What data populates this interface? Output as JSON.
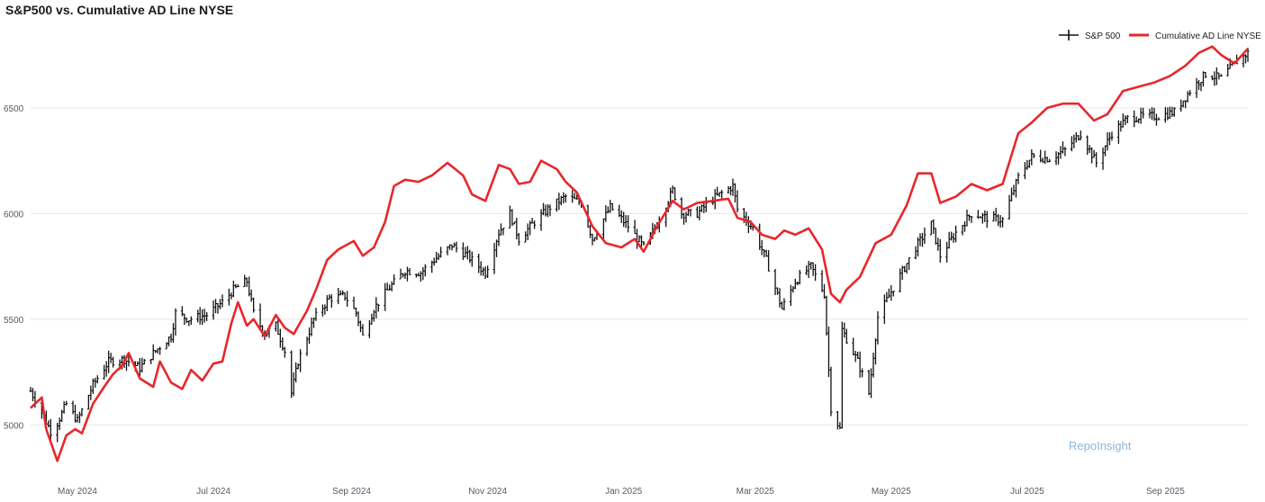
{
  "chart_data": {
    "type": "line",
    "title": "S&P500 vs. Cumulative AD Line NYSE",
    "xlabel": "",
    "ylabel": "",
    "xlim": [
      "2024-04-10",
      "2025-10-08"
    ],
    "ylim": [
      4780,
      6840
    ],
    "y_ticks": [
      5000,
      5500,
      6000,
      6500
    ],
    "x_ticks": [
      {
        "date": "2024-05-01",
        "label": "May 2024"
      },
      {
        "date": "2024-07-01",
        "label": "Jul 2024"
      },
      {
        "date": "2024-09-01",
        "label": "Sep 2024"
      },
      {
        "date": "2024-11-01",
        "label": "Nov 2024"
      },
      {
        "date": "2025-01-01",
        "label": "Jan 2025"
      },
      {
        "date": "2025-03-01",
        "label": "Mar 2025"
      },
      {
        "date": "2025-05-01",
        "label": "May 2025"
      },
      {
        "date": "2025-07-01",
        "label": "Jul 2025"
      },
      {
        "date": "2025-09-01",
        "label": "Sep 2025"
      }
    ],
    "grid": true,
    "legend_position": "top-right",
    "watermark": "RepoInsight",
    "series": [
      {
        "name": "S&P 500",
        "style": "ohlc",
        "color": "#111111",
        "points": [
          [
            "2024-04-10",
            5160
          ],
          [
            "2024-04-15",
            5060
          ],
          [
            "2024-04-19",
            4970
          ],
          [
            "2024-04-22",
            5010
          ],
          [
            "2024-04-26",
            5100
          ],
          [
            "2024-05-01",
            5020
          ],
          [
            "2024-05-08",
            5190
          ],
          [
            "2024-05-15",
            5300
          ],
          [
            "2024-05-22",
            5310
          ],
          [
            "2024-05-29",
            5270
          ],
          [
            "2024-06-05",
            5350
          ],
          [
            "2024-06-12",
            5420
          ],
          [
            "2024-06-14",
            5530
          ],
          [
            "2024-06-20",
            5500
          ],
          [
            "2024-06-28",
            5520
          ],
          [
            "2024-07-05",
            5580
          ],
          [
            "2024-07-10",
            5640
          ],
          [
            "2024-07-16",
            5680
          ],
          [
            "2024-07-19",
            5530
          ],
          [
            "2024-07-24",
            5430
          ],
          [
            "2024-07-29",
            5470
          ],
          [
            "2024-08-02",
            5350
          ],
          [
            "2024-08-05",
            5150
          ],
          [
            "2024-08-08",
            5300
          ],
          [
            "2024-08-15",
            5500
          ],
          [
            "2024-08-22",
            5600
          ],
          [
            "2024-08-29",
            5610
          ],
          [
            "2024-09-03",
            5530
          ],
          [
            "2024-09-06",
            5420
          ],
          [
            "2024-09-11",
            5550
          ],
          [
            "2024-09-18",
            5650
          ],
          [
            "2024-09-25",
            5730
          ],
          [
            "2024-10-02",
            5720
          ],
          [
            "2024-10-09",
            5790
          ],
          [
            "2024-10-16",
            5850
          ],
          [
            "2024-10-23",
            5800
          ],
          [
            "2024-10-31",
            5720
          ],
          [
            "2024-11-06",
            5910
          ],
          [
            "2024-11-11",
            6000
          ],
          [
            "2024-11-15",
            5880
          ],
          [
            "2024-11-22",
            5960
          ],
          [
            "2024-11-29",
            6030
          ],
          [
            "2024-12-06",
            6080
          ],
          [
            "2024-12-13",
            6050
          ],
          [
            "2024-12-18",
            5880
          ],
          [
            "2024-12-26",
            6030
          ],
          [
            "2025-01-03",
            5940
          ],
          [
            "2025-01-10",
            5840
          ],
          [
            "2025-01-16",
            5950
          ],
          [
            "2025-01-23",
            6110
          ],
          [
            "2025-01-27",
            6000
          ],
          [
            "2025-02-03",
            6000
          ],
          [
            "2025-02-10",
            6070
          ],
          [
            "2025-02-19",
            6130
          ],
          [
            "2025-02-21",
            6020
          ],
          [
            "2025-02-28",
            5930
          ],
          [
            "2025-03-06",
            5780
          ],
          [
            "2025-03-13",
            5550
          ],
          [
            "2025-03-19",
            5680
          ],
          [
            "2025-03-26",
            5750
          ],
          [
            "2025-04-01",
            5620
          ],
          [
            "2025-04-04",
            5080
          ],
          [
            "2025-04-08",
            4980
          ],
          [
            "2025-04-09",
            5450
          ],
          [
            "2025-04-16",
            5300
          ],
          [
            "2025-04-21",
            5150
          ],
          [
            "2025-04-25",
            5510
          ],
          [
            "2025-05-02",
            5650
          ],
          [
            "2025-05-12",
            5840
          ],
          [
            "2025-05-19",
            5950
          ],
          [
            "2025-05-23",
            5800
          ],
          [
            "2025-05-30",
            5910
          ],
          [
            "2025-06-06",
            6000
          ],
          [
            "2025-06-13",
            5980
          ],
          [
            "2025-06-20",
            5970
          ],
          [
            "2025-06-27",
            6170
          ],
          [
            "2025-07-03",
            6270
          ],
          [
            "2025-07-11",
            6260
          ],
          [
            "2025-07-18",
            6300
          ],
          [
            "2025-07-25",
            6380
          ],
          [
            "2025-08-01",
            6240
          ],
          [
            "2025-08-08",
            6380
          ],
          [
            "2025-08-15",
            6450
          ],
          [
            "2025-08-22",
            6460
          ],
          [
            "2025-08-29",
            6460
          ],
          [
            "2025-09-05",
            6480
          ],
          [
            "2025-09-12",
            6580
          ],
          [
            "2025-09-19",
            6660
          ],
          [
            "2025-09-26",
            6640
          ],
          [
            "2025-10-03",
            6720
          ],
          [
            "2025-10-08",
            6760
          ]
        ]
      },
      {
        "name": "Cumulative AD Line NYSE",
        "style": "line",
        "color": "#e8272b",
        "points": [
          [
            "2024-04-10",
            5080
          ],
          [
            "2024-04-15",
            5130
          ],
          [
            "2024-04-17",
            4980
          ],
          [
            "2024-04-22",
            4830
          ],
          [
            "2024-04-26",
            4950
          ],
          [
            "2024-04-30",
            4980
          ],
          [
            "2024-05-03",
            4960
          ],
          [
            "2024-05-08",
            5100
          ],
          [
            "2024-05-13",
            5180
          ],
          [
            "2024-05-17",
            5240
          ],
          [
            "2024-05-21",
            5280
          ],
          [
            "2024-05-24",
            5340
          ],
          [
            "2024-05-29",
            5220
          ],
          [
            "2024-06-04",
            5180
          ],
          [
            "2024-06-07",
            5300
          ],
          [
            "2024-06-12",
            5200
          ],
          [
            "2024-06-17",
            5170
          ],
          [
            "2024-06-21",
            5260
          ],
          [
            "2024-06-26",
            5210
          ],
          [
            "2024-07-01",
            5290
          ],
          [
            "2024-07-05",
            5300
          ],
          [
            "2024-07-09",
            5480
          ],
          [
            "2024-07-12",
            5580
          ],
          [
            "2024-07-16",
            5470
          ],
          [
            "2024-07-19",
            5500
          ],
          [
            "2024-07-24",
            5420
          ],
          [
            "2024-07-29",
            5520
          ],
          [
            "2024-08-02",
            5460
          ],
          [
            "2024-08-06",
            5430
          ],
          [
            "2024-08-12",
            5540
          ],
          [
            "2024-08-16",
            5640
          ],
          [
            "2024-08-21",
            5780
          ],
          [
            "2024-08-26",
            5830
          ],
          [
            "2024-09-02",
            5870
          ],
          [
            "2024-09-06",
            5800
          ],
          [
            "2024-09-11",
            5840
          ],
          [
            "2024-09-16",
            5960
          ],
          [
            "2024-09-20",
            6130
          ],
          [
            "2024-09-25",
            6160
          ],
          [
            "2024-10-01",
            6150
          ],
          [
            "2024-10-07",
            6180
          ],
          [
            "2024-10-14",
            6240
          ],
          [
            "2024-10-21",
            6180
          ],
          [
            "2024-10-25",
            6090
          ],
          [
            "2024-10-31",
            6060
          ],
          [
            "2024-11-06",
            6230
          ],
          [
            "2024-11-11",
            6210
          ],
          [
            "2024-11-15",
            6140
          ],
          [
            "2024-11-20",
            6150
          ],
          [
            "2024-11-25",
            6250
          ],
          [
            "2024-12-02",
            6210
          ],
          [
            "2024-12-06",
            6150
          ],
          [
            "2024-12-11",
            6100
          ],
          [
            "2024-12-18",
            5940
          ],
          [
            "2024-12-24",
            5860
          ],
          [
            "2024-12-31",
            5840
          ],
          [
            "2025-01-06",
            5880
          ],
          [
            "2025-01-10",
            5820
          ],
          [
            "2025-01-16",
            5940
          ],
          [
            "2025-01-23",
            6060
          ],
          [
            "2025-01-28",
            6020
          ],
          [
            "2025-02-03",
            6050
          ],
          [
            "2025-02-10",
            6060
          ],
          [
            "2025-02-17",
            6070
          ],
          [
            "2025-02-21",
            5980
          ],
          [
            "2025-02-27",
            5960
          ],
          [
            "2025-03-04",
            5900
          ],
          [
            "2025-03-10",
            5880
          ],
          [
            "2025-03-14",
            5920
          ],
          [
            "2025-03-19",
            5900
          ],
          [
            "2025-03-25",
            5930
          ],
          [
            "2025-03-31",
            5830
          ],
          [
            "2025-04-04",
            5620
          ],
          [
            "2025-04-08",
            5580
          ],
          [
            "2025-04-11",
            5640
          ],
          [
            "2025-04-17",
            5700
          ],
          [
            "2025-04-24",
            5860
          ],
          [
            "2025-05-01",
            5900
          ],
          [
            "2025-05-08",
            6040
          ],
          [
            "2025-05-13",
            6190
          ],
          [
            "2025-05-19",
            6190
          ],
          [
            "2025-05-23",
            6050
          ],
          [
            "2025-05-30",
            6080
          ],
          [
            "2025-06-06",
            6140
          ],
          [
            "2025-06-13",
            6110
          ],
          [
            "2025-06-20",
            6140
          ],
          [
            "2025-06-27",
            6380
          ],
          [
            "2025-07-03",
            6430
          ],
          [
            "2025-07-10",
            6500
          ],
          [
            "2025-07-17",
            6520
          ],
          [
            "2025-07-24",
            6520
          ],
          [
            "2025-07-31",
            6440
          ],
          [
            "2025-08-06",
            6470
          ],
          [
            "2025-08-13",
            6580
          ],
          [
            "2025-08-20",
            6600
          ],
          [
            "2025-08-27",
            6620
          ],
          [
            "2025-09-03",
            6650
          ],
          [
            "2025-09-10",
            6700
          ],
          [
            "2025-09-16",
            6760
          ],
          [
            "2025-09-22",
            6790
          ],
          [
            "2025-09-26",
            6750
          ],
          [
            "2025-10-02",
            6710
          ],
          [
            "2025-10-08",
            6780
          ]
        ]
      }
    ]
  }
}
